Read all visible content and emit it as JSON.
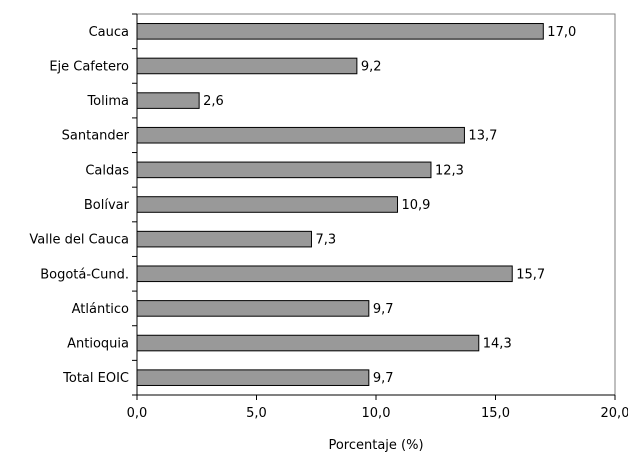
{
  "chart_data": {
    "type": "bar",
    "orientation": "horizontal",
    "categories": [
      "Cauca",
      "Eje Cafetero",
      "Tolima",
      "Santander",
      "Caldas",
      "Bolívar",
      "Valle del Cauca",
      "Bogotá-Cund.",
      "Atlántico",
      "Antioquia",
      "Total EOIC"
    ],
    "values": [
      17.0,
      9.2,
      2.6,
      13.7,
      12.3,
      10.9,
      7.3,
      15.7,
      9.7,
      14.3,
      9.7
    ],
    "value_labels": [
      "17,0",
      "9,2",
      "2,6",
      "13,7",
      "12,3",
      "10,9",
      "7,3",
      "15,7",
      "9,7",
      "14,3",
      "9,7"
    ],
    "xlabel": "Porcentaje (%)",
    "xlim": [
      0,
      20
    ],
    "x_ticks": [
      0,
      5,
      10,
      15,
      20
    ],
    "x_tick_labels": [
      "0,0",
      "5,0",
      "10,0",
      "15,0",
      "20,0"
    ],
    "grid": false,
    "bar_color": "#999999",
    "bar_border_color": "#000000"
  }
}
